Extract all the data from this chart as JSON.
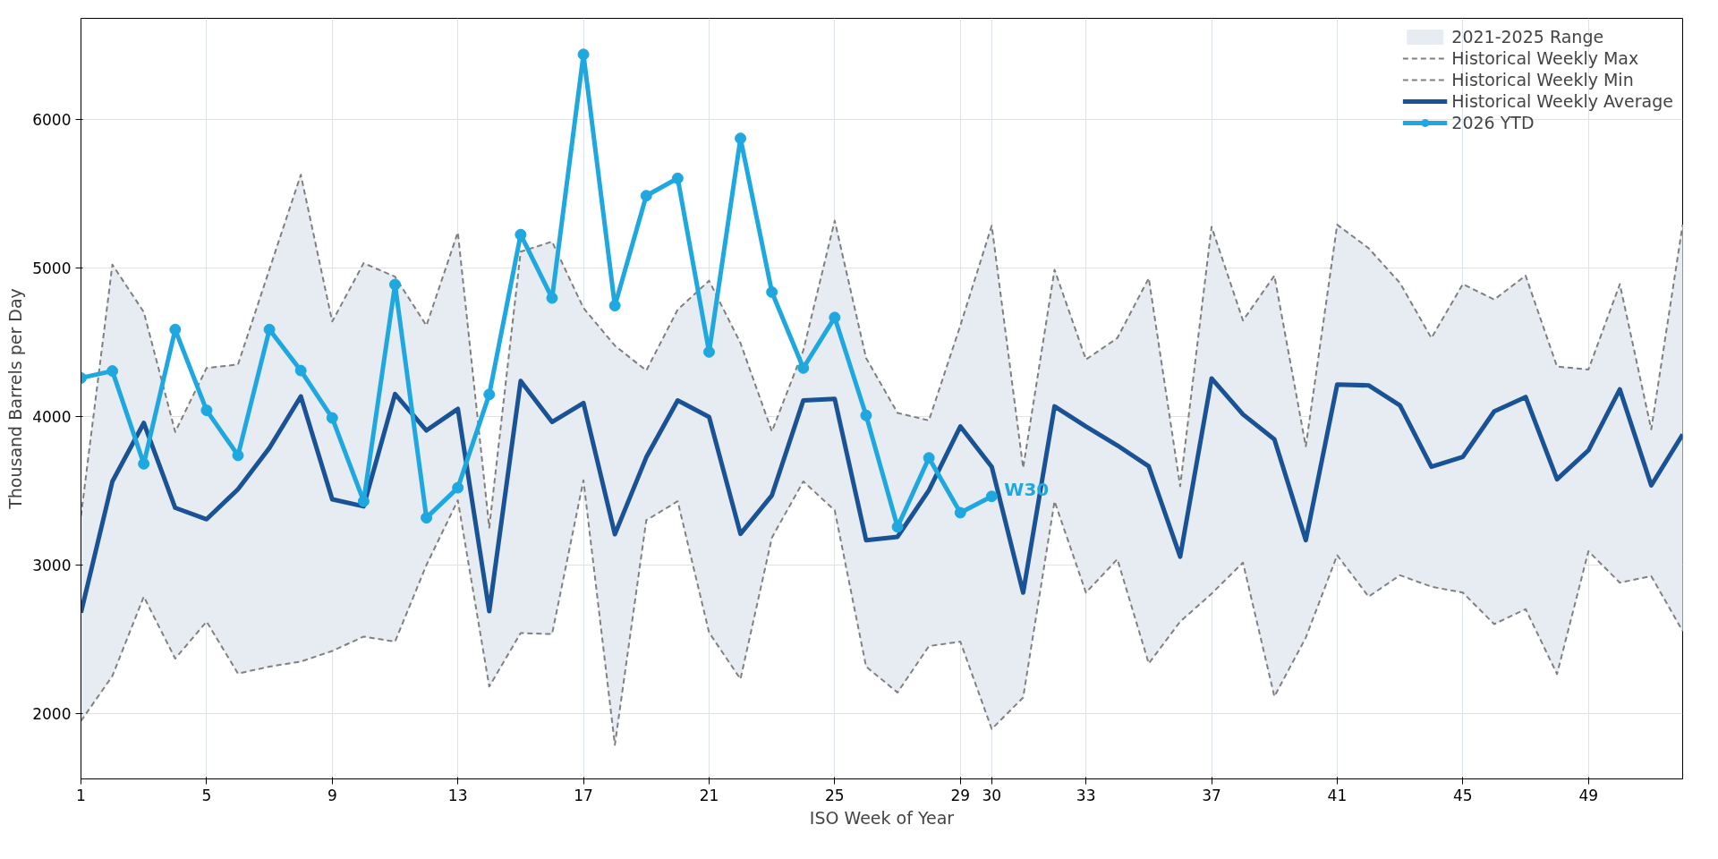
{
  "chart_data": {
    "type": "line",
    "xlabel": "ISO Week of Year",
    "ylabel": "Thousand Barrels per Day",
    "x": [
      1,
      2,
      3,
      4,
      5,
      6,
      7,
      8,
      9,
      10,
      11,
      12,
      13,
      14,
      15,
      16,
      17,
      18,
      19,
      20,
      21,
      22,
      23,
      24,
      25,
      26,
      27,
      28,
      29,
      30,
      31,
      32,
      33,
      34,
      35,
      36,
      37,
      38,
      39,
      40,
      41,
      42,
      43,
      44,
      45,
      46,
      47,
      48,
      49,
      50,
      51,
      52
    ],
    "xlim": [
      1,
      52
    ],
    "xticks": [
      1,
      5,
      9,
      13,
      17,
      21,
      25,
      29,
      30,
      33,
      37,
      41,
      45,
      49
    ],
    "ylim": [
      1560,
      6680
    ],
    "yticks": [
      2000,
      3000,
      4000,
      5000,
      6000
    ],
    "grid": true,
    "legend": "top right",
    "series": [
      {
        "name": "Historical Weekly Max",
        "color": "#7f7f7f",
        "line_style": "dashed",
        "values": [
          3330,
          5022,
          4703,
          3896,
          4326,
          4350,
          4990,
          5627,
          4639,
          5032,
          4941,
          4612,
          5240,
          3251,
          5109,
          5177,
          4730,
          4477,
          4309,
          4719,
          4914,
          4494,
          3899,
          4444,
          5318,
          4393,
          4024,
          3973,
          4612,
          5284,
          3654,
          4988,
          4383,
          4528,
          4931,
          3530,
          5277,
          4646,
          4948,
          3799,
          5291,
          5133,
          4898,
          4528,
          4891,
          4787,
          4948,
          4336,
          4316,
          4891,
          3913,
          5291
        ]
      },
      {
        "name": "Historical Weekly Min",
        "color": "#818181",
        "line_style": "dashed",
        "values": [
          1950,
          2253,
          2787,
          2370,
          2619,
          2269,
          2316,
          2350,
          2421,
          2518,
          2484,
          3000,
          3436,
          2182,
          2542,
          2535,
          3570,
          1789,
          3301,
          3429,
          2545,
          2232,
          3184,
          3563,
          3368,
          2316,
          2142,
          2454,
          2484,
          1896,
          2108,
          3429,
          2814,
          3039,
          2337,
          2619,
          2807,
          3016,
          2115,
          2511,
          3066,
          2787,
          2931,
          2854,
          2814,
          2602,
          2703,
          2266,
          3093,
          2881,
          2925,
          2555
        ]
      },
      {
        "name": "Historical Weekly Average",
        "color": "#1a5296",
        "line_style": "solid",
        "values": [
          2679,
          3563,
          3956,
          3385,
          3308,
          3510,
          3788,
          4135,
          3442,
          3395,
          4151,
          3906,
          4051,
          2689,
          4239,
          3963,
          4091,
          3207,
          3725,
          4108,
          3997,
          3210,
          3469,
          4108,
          4118,
          3167,
          3190,
          3503,
          3933,
          3661,
          2814,
          4068,
          3933,
          3805,
          3664,
          3056,
          4256,
          4014,
          3846,
          3167,
          4215,
          4209,
          4074,
          3661,
          3728,
          4034,
          4131,
          3577,
          3772,
          4182,
          3536,
          3879
        ]
      },
      {
        "name": "2026 YTD",
        "color": "#1fa8e0",
        "line_style": "solid",
        "marker": "circle",
        "x": [
          1,
          2,
          3,
          4,
          5,
          6,
          7,
          8,
          9,
          10,
          11,
          12,
          13,
          14,
          15,
          16,
          17,
          18,
          19,
          20,
          21,
          22,
          23,
          24,
          25,
          26,
          27,
          28,
          29,
          30
        ],
        "values": [
          4259,
          4306,
          3681,
          4585,
          4041,
          3738,
          4585,
          4309,
          3990,
          3429,
          4888,
          3318,
          3520,
          4148,
          5224,
          4797,
          6437,
          4746,
          5486,
          5603,
          4434,
          5872,
          4837,
          4326,
          4666,
          4007,
          3257,
          3721,
          3352,
          3462
        ]
      },
      {
        "name": "2021-2025 Range",
        "type": "area",
        "color": "#e6ecf2",
        "values": [
          null,
          null,
          null,
          null,
          null,
          null,
          null,
          null,
          null,
          null,
          null,
          null,
          null,
          null,
          null,
          null,
          null,
          null,
          null,
          null,
          null,
          null,
          null,
          null,
          null,
          null,
          null,
          null,
          null,
          null,
          null,
          null,
          null,
          null,
          null,
          null,
          null,
          null,
          null,
          null,
          null,
          null,
          null,
          null,
          null,
          null,
          null,
          null,
          null,
          null,
          null,
          null
        ],
        "upper": [
          3330,
          5022,
          4703,
          3896,
          4326,
          4350,
          4990,
          5627,
          4639,
          5032,
          4941,
          4612,
          5240,
          3251,
          5109,
          5177,
          4730,
          4477,
          4309,
          4719,
          4914,
          4494,
          3899,
          4444,
          5318,
          4393,
          4024,
          3973,
          4612,
          5284,
          3654,
          4988,
          4383,
          4528,
          4931,
          3530,
          5277,
          4646,
          4948,
          3799,
          5291,
          5133,
          4898,
          4528,
          4891,
          4787,
          4948,
          4336,
          4316,
          4891,
          3913,
          5291
        ],
        "lower": [
          1950,
          2253,
          2787,
          2370,
          2619,
          2269,
          2316,
          2350,
          2421,
          2518,
          2484,
          3000,
          3436,
          2182,
          2542,
          2535,
          3570,
          1789,
          3301,
          3429,
          2545,
          2232,
          3184,
          3563,
          3368,
          2316,
          2142,
          2454,
          2484,
          1896,
          2108,
          3429,
          2814,
          3039,
          2337,
          2619,
          2807,
          3016,
          2115,
          2511,
          3066,
          2787,
          2931,
          2854,
          2814,
          2602,
          2703,
          2266,
          3093,
          2881,
          2925,
          2555
        ]
      }
    ],
    "annotations": [
      {
        "text": "W30",
        "x": 30,
        "y": 3462
      }
    ]
  }
}
